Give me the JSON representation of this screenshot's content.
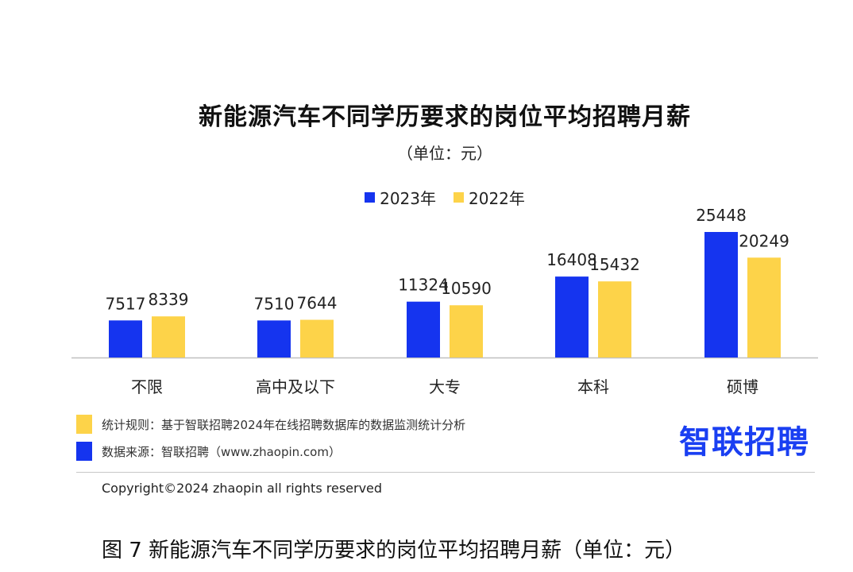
{
  "chart_data": {
    "type": "bar",
    "title": "新能源汽车不同学历要求的岗位平均招聘月薪",
    "subtitle": "（单位：元）",
    "categories": [
      "不限",
      "高中及以下",
      "大专",
      "本科",
      "硕博"
    ],
    "series": [
      {
        "name": "2023年",
        "color": "#1534ef",
        "values": [
          7517,
          7510,
          11324,
          16408,
          25448
        ]
      },
      {
        "name": "2022年",
        "color": "#fdd349",
        "values": [
          8339,
          7644,
          10590,
          15432,
          20249
        ]
      }
    ],
    "ylim": [
      0,
      26000
    ],
    "xlabel": "",
    "ylabel": "",
    "legend": "top-center",
    "grid": false
  },
  "notes": {
    "rule": "统计规则：基于智联招聘2024年在线招聘数据库的数据监测统计分析",
    "source": "数据来源：智联招聘（www.zhaopin.com）"
  },
  "brand": "智联招聘",
  "copyright": "Copyright©2024 zhaopin all rights reserved",
  "figure_caption": "图 7  新能源汽车不同学历要求的岗位平均招聘月薪（单位：元）"
}
